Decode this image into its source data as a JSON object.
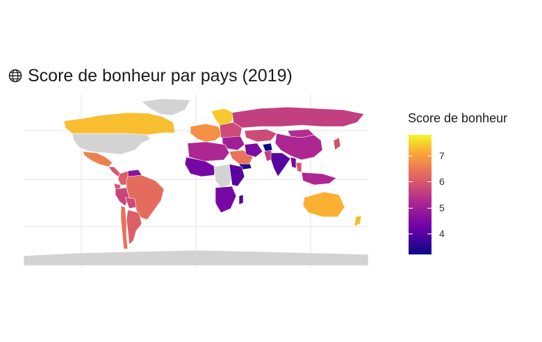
{
  "title": "Score de bonheur par pays (2019)",
  "title_icon": "globe-icon",
  "legend": {
    "title": "Score de bonheur",
    "ticks": [
      7,
      6,
      5,
      4
    ],
    "min": 3.2,
    "max": 7.8,
    "palette": "plasma",
    "position": "right"
  },
  "map": {
    "projection": "equirectangular",
    "no_data_color": "#d3d3d3",
    "grid": true,
    "countries": [
      {
        "name": "Canada",
        "score": 7.3
      },
      {
        "name": "United States",
        "score": null
      },
      {
        "name": "Greenland",
        "score": null
      },
      {
        "name": "Mexico",
        "score": 6.6
      },
      {
        "name": "Central America",
        "score": 6.0
      },
      {
        "name": "Venezuela",
        "score": 4.7
      },
      {
        "name": "Colombia",
        "score": 6.1
      },
      {
        "name": "Ecuador",
        "score": 6.0
      },
      {
        "name": "Peru",
        "score": 5.7
      },
      {
        "name": "Brazil",
        "score": 6.3
      },
      {
        "name": "Bolivia",
        "score": 5.8
      },
      {
        "name": "Argentina",
        "score": 6.1
      },
      {
        "name": "Chile",
        "score": 6.4
      },
      {
        "name": "Scandinavia",
        "score": 7.4
      },
      {
        "name": "Western Europe",
        "score": 6.8
      },
      {
        "name": "Eastern Europe",
        "score": 5.8
      },
      {
        "name": "Russia",
        "score": 5.6
      },
      {
        "name": "Kazakhstan",
        "score": 5.8
      },
      {
        "name": "Mongolia",
        "score": 5.3
      },
      {
        "name": "China",
        "score": 5.2
      },
      {
        "name": "Middle East",
        "score": 5.0
      },
      {
        "name": "Saudi Arabia",
        "score": 6.4
      },
      {
        "name": "Yemen",
        "score": 3.4
      },
      {
        "name": "Iran",
        "score": 4.5
      },
      {
        "name": "Afghanistan",
        "score": 3.2
      },
      {
        "name": "Pakistan",
        "score": 5.6
      },
      {
        "name": "India",
        "score": 4.0
      },
      {
        "name": "Myanmar",
        "score": 4.4
      },
      {
        "name": "Thailand",
        "score": 6.0
      },
      {
        "name": "Southeast Asia",
        "score": 5.2
      },
      {
        "name": "Japan",
        "score": 5.9
      },
      {
        "name": "North Africa",
        "score": 5.2
      },
      {
        "name": "West Africa",
        "score": 4.4
      },
      {
        "name": "Central Africa",
        "score": null
      },
      {
        "name": "East Africa",
        "score": 4.0
      },
      {
        "name": "Southern Africa",
        "score": 4.4
      },
      {
        "name": "Madagascar",
        "score": 3.9
      },
      {
        "name": "Australia",
        "score": 7.2
      },
      {
        "name": "New Zealand",
        "score": 7.3
      },
      {
        "name": "Antarctica",
        "score": null
      }
    ]
  }
}
